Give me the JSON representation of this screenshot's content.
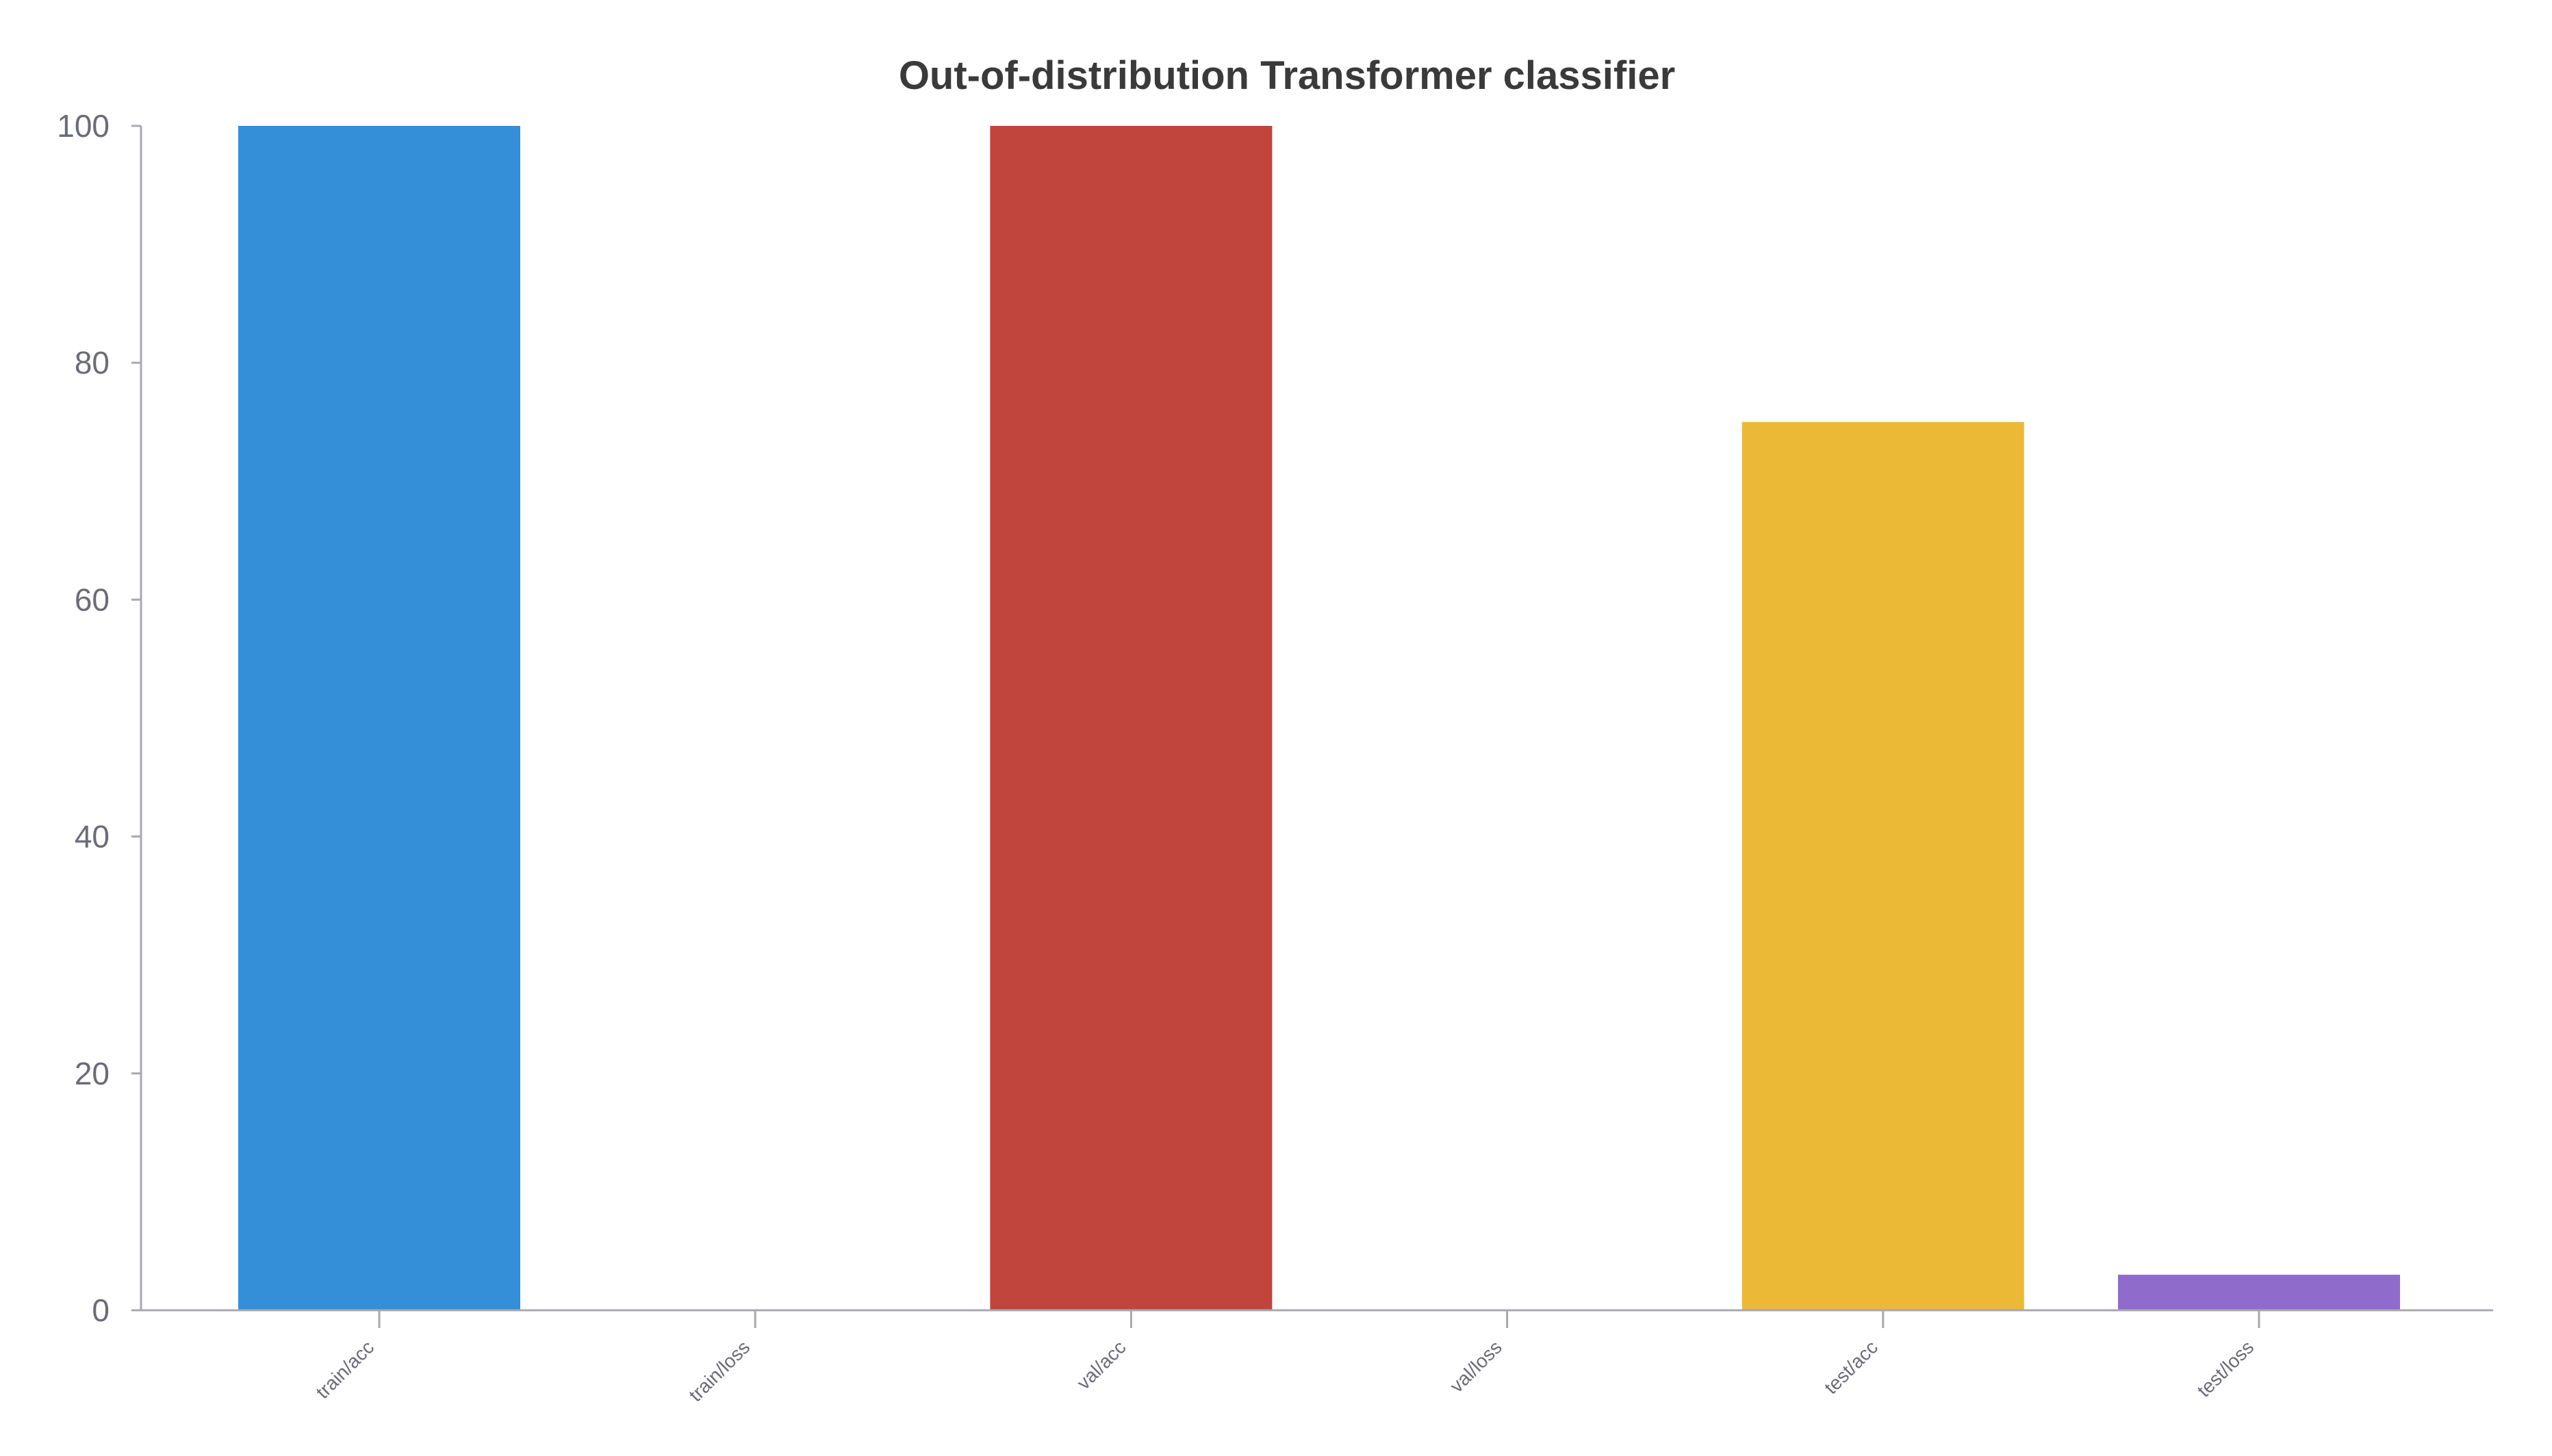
{
  "chart_data": {
    "type": "bar",
    "title": "Out-of-distribution Transformer classifier",
    "xlabel": "",
    "ylabel": "",
    "categories": [
      "train/acc",
      "train/loss",
      "val/acc",
      "val/loss",
      "test/acc",
      "test/loss"
    ],
    "values": [
      100,
      0,
      100,
      0,
      75,
      3
    ],
    "colors": [
      "#348ed8",
      "#348ed8",
      "#c1443d",
      "#c1443d",
      "#ecb936",
      "#8f6bcb"
    ],
    "ylim": [
      0,
      100
    ],
    "yticks": [
      0,
      20,
      40,
      60,
      80,
      100
    ],
    "ytick_labels": [
      "0",
      "20",
      "40",
      "60",
      "80",
      "100"
    ],
    "grid": false,
    "legend": "none"
  }
}
